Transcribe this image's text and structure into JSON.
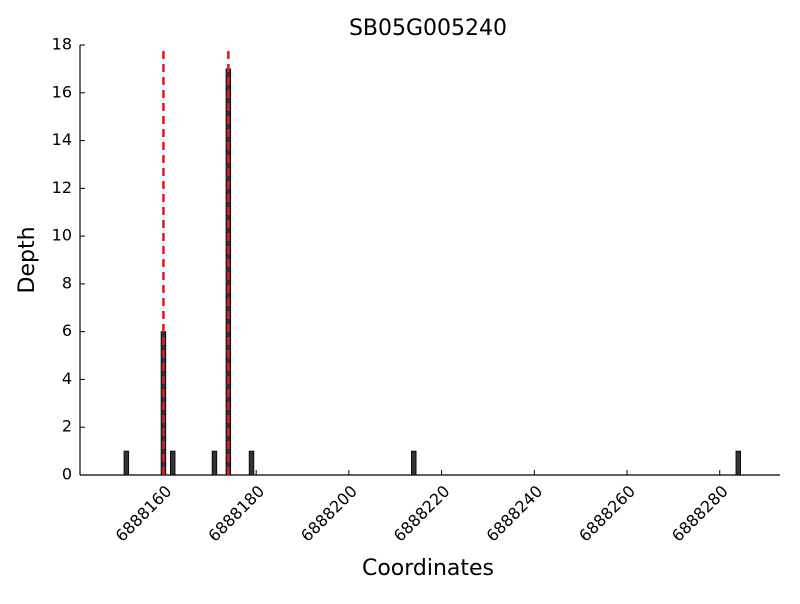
{
  "chart_data": {
    "type": "bar",
    "title": "SB05G005240",
    "xlabel": "Coordinates",
    "ylabel": "Depth",
    "x": [
      6888152,
      6888160,
      6888162,
      6888171,
      6888174,
      6888179,
      6888214,
      6888284
    ],
    "values": [
      1,
      6,
      1,
      1,
      17,
      1,
      1,
      1
    ],
    "color": "#333333",
    "xlim": [
      6888142,
      6888293
    ],
    "xticks": [
      6888160,
      6888180,
      6888200,
      6888220,
      6888240,
      6888260,
      6888280
    ],
    "ylim": [
      0,
      18
    ],
    "yticks": [
      0,
      2,
      4,
      6,
      8,
      10,
      12,
      14,
      16,
      18
    ],
    "vlines": [
      6888160,
      6888174
    ],
    "vline_color": "#e31a1c"
  }
}
